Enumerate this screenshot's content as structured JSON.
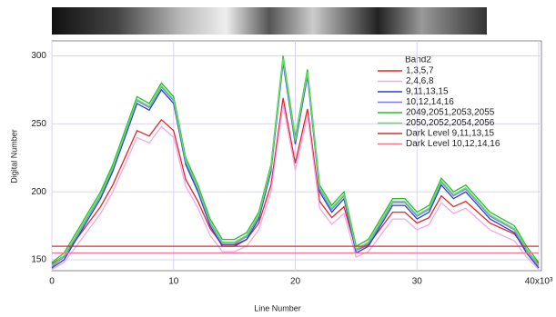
{
  "chart_data": {
    "type": "line",
    "x": [
      0,
      1,
      2,
      3,
      4,
      5,
      6,
      7,
      8,
      9,
      10,
      11,
      12,
      13,
      14,
      15,
      16,
      17,
      18,
      19,
      20,
      21,
      22,
      23,
      24,
      25,
      26,
      27,
      28,
      29,
      30,
      31,
      32,
      33,
      34,
      35,
      36,
      37,
      38,
      39,
      40
    ],
    "xlabel": "Line Number",
    "ylabel": "Digital Number",
    "legend_title": "Band2",
    "xlim": [
      0,
      40
    ],
    "xticks": [
      0,
      10,
      20,
      30,
      {
        "value": 40,
        "label": "40x10³"
      }
    ],
    "ylim": [
      142,
      311
    ],
    "yticks": [
      150,
      200,
      250,
      300
    ],
    "grid": true,
    "legend": "upper right",
    "series": [
      {
        "name": "1,3,5,7",
        "color": "#e0282a",
        "values": [
          147,
          153,
          165,
          177,
          189,
          205,
          225,
          245,
          241,
          253,
          245,
          209,
          193,
          173,
          161,
          161,
          165,
          177,
          205,
          269,
          221,
          261,
          193,
          181,
          189,
          157,
          161,
          173,
          185,
          185,
          177,
          181,
          197,
          189,
          193,
          185,
          177,
          173,
          169,
          157,
          147
        ]
      },
      {
        "name": "2,4,6,8",
        "color": "#f0a8e8",
        "values": [
          143,
          148,
          160,
          172,
          184,
          200,
          220,
          240,
          236,
          248,
          240,
          204,
          188,
          168,
          156,
          156,
          160,
          172,
          200,
          264,
          216,
          256,
          188,
          176,
          184,
          152,
          156,
          168,
          180,
          180,
          172,
          176,
          192,
          184,
          188,
          180,
          172,
          168,
          164,
          152,
          143
        ]
      },
      {
        "name": "9,11,13,15",
        "color": "#2a3fd0",
        "values": [
          144,
          150,
          165,
          180,
          195,
          215,
          240,
          265,
          260,
          275,
          265,
          220,
          200,
          175,
          160,
          160,
          165,
          180,
          215,
          295,
          235,
          285,
          200,
          185,
          195,
          155,
          160,
          175,
          190,
          190,
          180,
          185,
          205,
          195,
          200,
          190,
          180,
          175,
          170,
          155,
          144
        ]
      },
      {
        "name": "10,12,14,16",
        "color": "#7c7cf0",
        "values": [
          145,
          152,
          167,
          182,
          197,
          217,
          242,
          267,
          262,
          277,
          267,
          222,
          202,
          177,
          162,
          162,
          167,
          182,
          217,
          297,
          237,
          287,
          202,
          187,
          197,
          157,
          162,
          177,
          192,
          192,
          182,
          187,
          207,
          197,
          202,
          192,
          182,
          177,
          172,
          157,
          145
        ]
      },
      {
        "name": "2049,2051,2053,2055",
        "color": "#22c02a",
        "values": [
          148,
          155,
          170,
          185,
          200,
          220,
          245,
          270,
          265,
          280,
          270,
          225,
          205,
          180,
          165,
          165,
          170,
          185,
          220,
          300,
          240,
          290,
          205,
          190,
          200,
          160,
          165,
          180,
          195,
          195,
          185,
          190,
          210,
          200,
          205,
          195,
          185,
          180,
          175,
          160,
          148
        ]
      },
      {
        "name": "2050,2052,2054,2056",
        "color": "#66e060",
        "values": [
          146,
          153,
          168,
          183,
          198,
          218,
          243,
          268,
          263,
          278,
          268,
          223,
          203,
          178,
          163,
          163,
          168,
          183,
          218,
          298,
          238,
          288,
          203,
          188,
          198,
          158,
          163,
          178,
          193,
          193,
          183,
          188,
          208,
          198,
          203,
          193,
          183,
          178,
          173,
          158,
          146
        ]
      },
      {
        "name": "Dark Level 9,11,13,15",
        "color": "#d83030",
        "values": [
          160,
          160,
          160,
          160,
          160,
          160,
          160,
          160,
          160,
          160,
          160,
          160,
          160,
          160,
          160,
          160,
          160,
          160,
          160,
          160,
          160,
          160,
          160,
          160,
          160,
          160,
          160,
          160,
          160,
          160,
          160,
          160,
          160,
          160,
          160,
          160,
          160,
          160,
          160,
          160,
          160
        ]
      },
      {
        "name": "Dark Level 10,12,14,16",
        "color": "#f07890",
        "values": [
          155,
          155,
          155,
          155,
          155,
          155,
          155,
          155,
          155,
          155,
          155,
          155,
          155,
          155,
          155,
          155,
          155,
          155,
          155,
          155,
          155,
          155,
          155,
          155,
          155,
          155,
          155,
          155,
          155,
          155,
          155,
          155,
          155,
          155,
          155,
          155,
          155,
          155,
          155,
          155,
          155
        ]
      }
    ]
  }
}
